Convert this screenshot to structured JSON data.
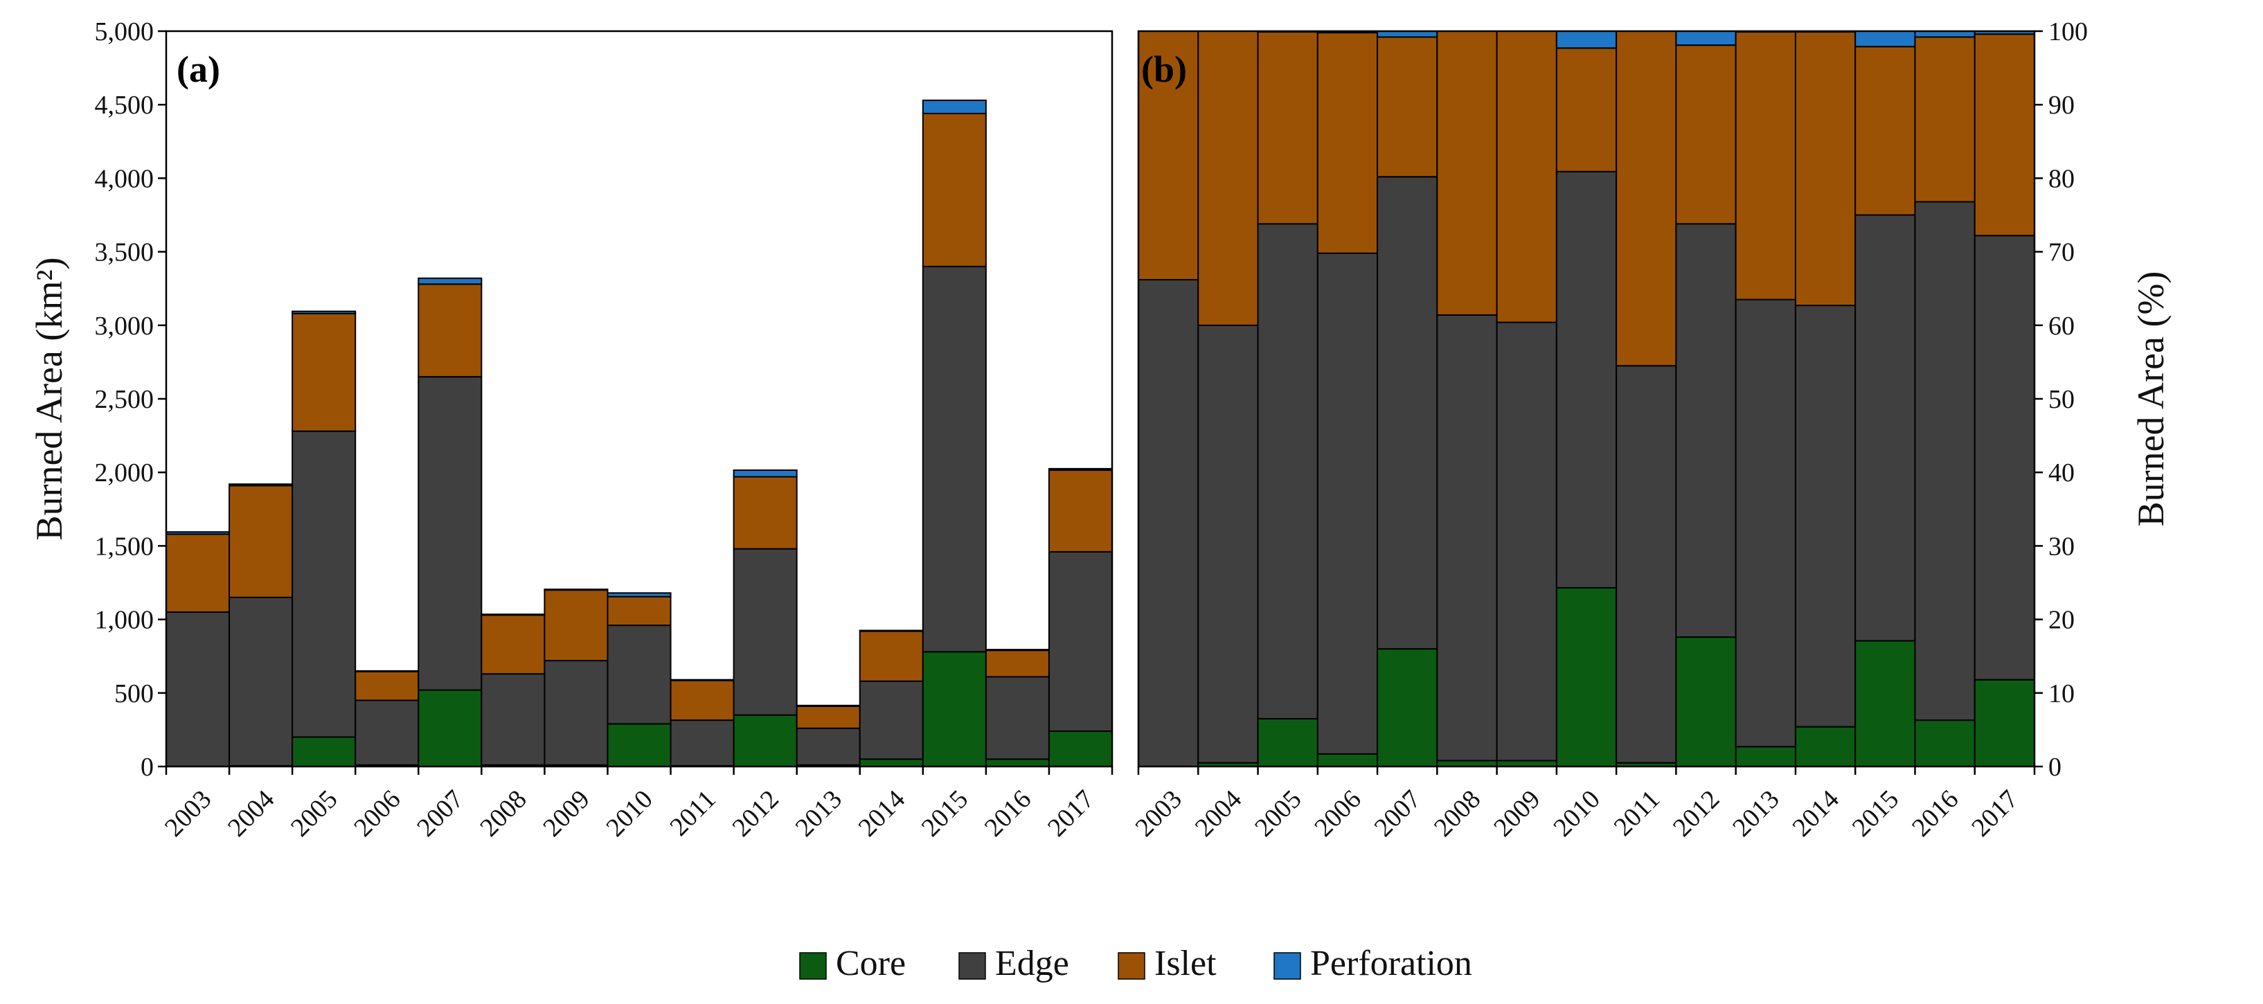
{
  "chart_data": [
    {
      "type": "bar",
      "stacked": true,
      "panel_label": "(a)",
      "ylabel": "Burned Area (km²)",
      "ylim": [
        0,
        5000
      ],
      "yticks": [
        0,
        500,
        1000,
        1500,
        2000,
        2500,
        3000,
        3500,
        4000,
        4500,
        5000
      ],
      "ytick_labels": [
        "0",
        "500",
        "1,000",
        "1,500",
        "2,000",
        "2,500",
        "3,000",
        "3,500",
        "4,000",
        "4,500",
        "5,000"
      ],
      "categories": [
        "2003",
        "2004",
        "2005",
        "2006",
        "2007",
        "2008",
        "2009",
        "2010",
        "2011",
        "2012",
        "2013",
        "2014",
        "2015",
        "2016",
        "2017"
      ],
      "series": [
        {
          "name": "Core",
          "color": "#0b5c12",
          "values": [
            0,
            5,
            200,
            10,
            520,
            10,
            10,
            290,
            5,
            350,
            10,
            50,
            780,
            50,
            240
          ]
        },
        {
          "name": "Edge",
          "color": "#404040",
          "values": [
            1050,
            1145,
            2080,
            440,
            2130,
            620,
            710,
            670,
            310,
            1130,
            250,
            530,
            2620,
            560,
            1220
          ]
        },
        {
          "name": "Islet",
          "color": "#9c5204",
          "values": [
            530,
            760,
            800,
            195,
            630,
            400,
            480,
            195,
            270,
            490,
            150,
            340,
            1040,
            180,
            555
          ]
        },
        {
          "name": "Perforation",
          "color": "#1f77c5",
          "values": [
            15,
            10,
            15,
            5,
            40,
            5,
            5,
            25,
            5,
            45,
            5,
            5,
            90,
            5,
            10
          ]
        }
      ]
    },
    {
      "type": "bar",
      "stacked": true,
      "panel_label": "(b)",
      "ylabel": "Burned Area (%)",
      "ylim": [
        0,
        100
      ],
      "yticks": [
        0,
        10,
        20,
        30,
        40,
        50,
        60,
        70,
        80,
        90,
        100
      ],
      "ytick_labels": [
        "0",
        "10",
        "20",
        "30",
        "40",
        "50",
        "60",
        "70",
        "80",
        "90",
        "100"
      ],
      "categories": [
        "2003",
        "2004",
        "2005",
        "2006",
        "2007",
        "2008",
        "2009",
        "2010",
        "2011",
        "2012",
        "2013",
        "2014",
        "2015",
        "2016",
        "2017"
      ],
      "series": [
        {
          "name": "Core",
          "color": "#0b5c12",
          "values": [
            0,
            0.5,
            6.5,
            1.7,
            16,
            0.8,
            0.8,
            24.3,
            0.5,
            17.6,
            2.7,
            5.4,
            17.1,
            6.3,
            11.8
          ]
        },
        {
          "name": "Edge",
          "color": "#404040",
          "values": [
            66.2,
            59.5,
            67.3,
            68.1,
            64.2,
            60.6,
            59.6,
            56.6,
            54,
            56.2,
            60.8,
            57.3,
            57.9,
            70.5,
            60.4
          ]
        },
        {
          "name": "Islet",
          "color": "#9c5204",
          "values": [
            33.8,
            40,
            26.1,
            30,
            19,
            38.6,
            39.6,
            16.8,
            45.5,
            24.3,
            36.4,
            37.2,
            22.9,
            22.4,
            27.4
          ]
        },
        {
          "name": "Perforation",
          "color": "#1f77c5",
          "values": [
            0,
            0,
            0.1,
            0.2,
            0.8,
            0,
            0,
            2.3,
            0,
            1.9,
            0.1,
            0.1,
            2.1,
            0.8,
            0.4
          ]
        }
      ]
    }
  ],
  "legend": [
    {
      "name": "Core",
      "color": "#0b5c12"
    },
    {
      "name": "Edge",
      "color": "#404040"
    },
    {
      "name": "Islet",
      "color": "#9c5204"
    },
    {
      "name": "Perforation",
      "color": "#1f77c5"
    }
  ]
}
